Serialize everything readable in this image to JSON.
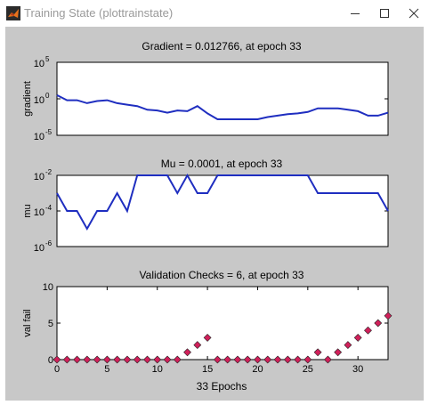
{
  "window": {
    "title": "Training State (plottrainstate)",
    "icon": "matlab-logo-icon"
  },
  "controls": {
    "minimize_icon": "minimize-icon",
    "maximize_icon": "maximize-icon",
    "close_icon": "close-icon"
  },
  "colors": {
    "line": "#1f2ec0",
    "marker": "#d0205a",
    "background": "#c8c8c8",
    "axes_bg": "#ffffff"
  },
  "chart_data": [
    {
      "type": "line",
      "title": "Gradient = 0.012766, at epoch 33",
      "ylabel": "gradient",
      "yscale": "log",
      "yticks": [
        {
          "base": "10",
          "exp": "-5"
        },
        {
          "base": "10",
          "exp": "0"
        },
        {
          "base": "10",
          "exp": "5"
        }
      ],
      "ylim_exp": [
        -5,
        5
      ],
      "xlim": [
        0,
        33
      ],
      "x": [
        0,
        1,
        2,
        3,
        4,
        5,
        6,
        7,
        8,
        9,
        10,
        11,
        12,
        13,
        14,
        15,
        16,
        17,
        18,
        19,
        20,
        21,
        22,
        23,
        24,
        25,
        26,
        27,
        28,
        29,
        30,
        31,
        32,
        33
      ],
      "log10_y": [
        0.5,
        -0.2,
        -0.2,
        -0.6,
        -0.3,
        -0.2,
        -0.6,
        -0.8,
        -1.0,
        -1.5,
        -1.6,
        -1.9,
        -1.6,
        -1.7,
        -1.0,
        -2.0,
        -2.8,
        -2.8,
        -2.8,
        -2.8,
        -2.8,
        -2.5,
        -2.3,
        -2.1,
        -2.0,
        -1.8,
        -1.3,
        -1.3,
        -1.3,
        -1.5,
        -1.7,
        -2.3,
        -2.3,
        -1.9
      ]
    },
    {
      "type": "line",
      "title": "Mu = 0.0001, at epoch 33",
      "ylabel": "mu",
      "yscale": "log",
      "yticks": [
        {
          "base": "10",
          "exp": "-6"
        },
        {
          "base": "10",
          "exp": "-4"
        },
        {
          "base": "10",
          "exp": "-2"
        }
      ],
      "ylim_exp": [
        -6,
        -2
      ],
      "xlim": [
        0,
        33
      ],
      "x": [
        0,
        1,
        2,
        3,
        4,
        5,
        6,
        7,
        8,
        9,
        10,
        11,
        12,
        13,
        14,
        15,
        16,
        17,
        18,
        19,
        20,
        21,
        22,
        23,
        24,
        25,
        26,
        27,
        28,
        29,
        30,
        31,
        32,
        33
      ],
      "log10_y": [
        -3,
        -4,
        -4,
        -5,
        -4,
        -4,
        -3,
        -4,
        -2,
        -2,
        -2,
        -2,
        -3,
        -2,
        -3,
        -3,
        -2,
        -2,
        -2,
        -2,
        -2,
        -2,
        -2,
        -2,
        -2,
        -2,
        -3,
        -3,
        -3,
        -3,
        -3,
        -3,
        -3,
        -4
      ]
    },
    {
      "type": "scatter",
      "title": "Validation Checks = 6, at epoch 33",
      "ylabel": "val fail",
      "xlabel": "33 Epochs",
      "ylim": [
        0,
        10
      ],
      "yticks": [
        "0",
        "5",
        "10"
      ],
      "xlim": [
        0,
        33
      ],
      "xticks": [
        "0",
        "5",
        "10",
        "15",
        "20",
        "25",
        "30"
      ],
      "x": [
        0,
        1,
        2,
        3,
        4,
        5,
        6,
        7,
        8,
        9,
        10,
        11,
        12,
        13,
        14,
        15,
        16,
        17,
        18,
        19,
        20,
        21,
        22,
        23,
        24,
        25,
        26,
        27,
        28,
        29,
        30,
        31,
        32,
        33
      ],
      "y": [
        0,
        0,
        0,
        0,
        0,
        0,
        0,
        0,
        0,
        0,
        0,
        0,
        0,
        1,
        2,
        3,
        0,
        0,
        0,
        0,
        0,
        0,
        0,
        0,
        0,
        0,
        1,
        0,
        1,
        2,
        3,
        4,
        5,
        6
      ]
    }
  ]
}
